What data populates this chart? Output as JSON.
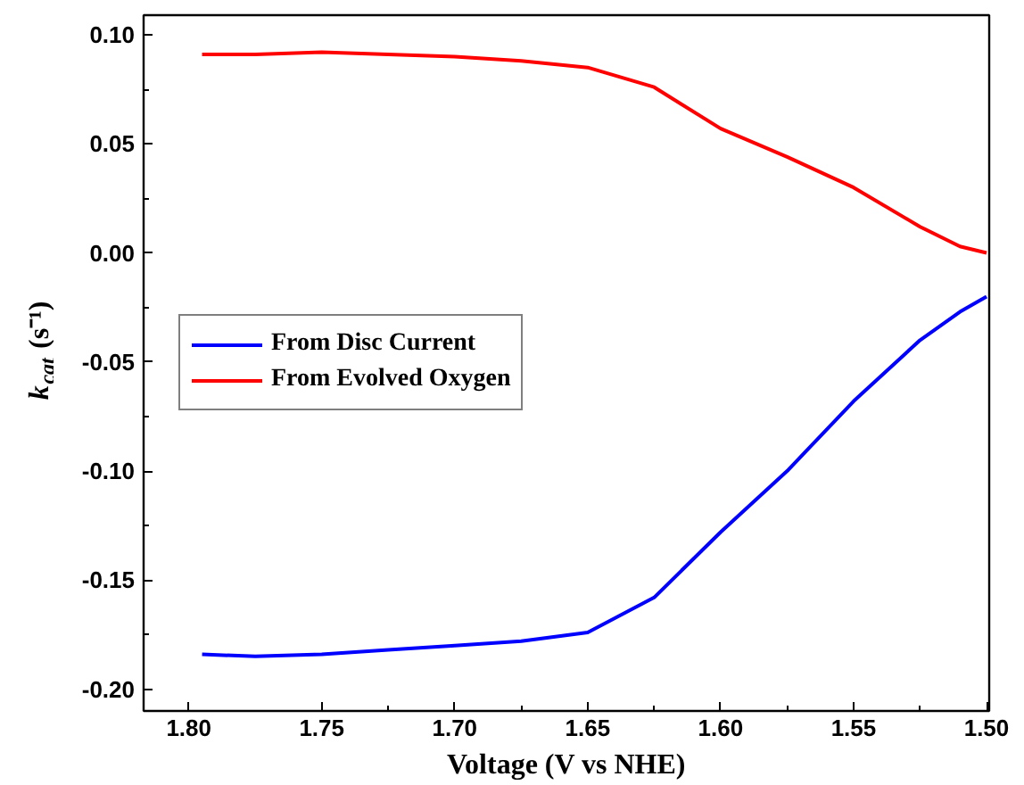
{
  "chart_data": {
    "type": "line",
    "xlabel": "Voltage (V vs NHE)",
    "ylabel": "k$_{cat}$ (s⁻¹)",
    "xlim": [
      1.817,
      1.499
    ],
    "ylim": [
      -0.21,
      0.109
    ],
    "xticks": [
      {
        "value": 1.8,
        "label": "1.80"
      },
      {
        "value": 1.75,
        "label": "1.75"
      },
      {
        "value": 1.7,
        "label": "1.70"
      },
      {
        "value": 1.65,
        "label": "1.65"
      },
      {
        "value": 1.6,
        "label": "1.60"
      },
      {
        "value": 1.55,
        "label": "1.55"
      },
      {
        "value": 1.5,
        "label": "1.50"
      }
    ],
    "yticks": [
      {
        "value": -0.2,
        "label": "-0.20"
      },
      {
        "value": -0.15,
        "label": "-0.15"
      },
      {
        "value": -0.1,
        "label": "-0.10"
      },
      {
        "value": -0.05,
        "label": "-0.05"
      },
      {
        "value": 0,
        "label": "0.00"
      },
      {
        "value": 0.05,
        "label": "0.05"
      },
      {
        "value": 0.1,
        "label": "0.10"
      }
    ],
    "x": [
      1.795,
      1.775,
      1.75,
      1.725,
      1.7,
      1.675,
      1.65,
      1.625,
      1.6,
      1.575,
      1.55,
      1.525,
      1.51,
      1.5
    ],
    "series": [
      {
        "name": "From Disc Current",
        "color": "#0000ff",
        "values": [
          -0.184,
          -0.185,
          -0.184,
          -0.182,
          -0.18,
          -0.178,
          -0.174,
          -0.158,
          -0.128,
          -0.1,
          -0.068,
          -0.04,
          -0.027,
          -0.02
        ]
      },
      {
        "name": "From Evolved Oxygen",
        "color": "#ff0000",
        "values": [
          0.091,
          0.091,
          0.092,
          0.091,
          0.09,
          0.088,
          0.085,
          0.076,
          0.057,
          0.044,
          0.03,
          0.012,
          0.003,
          0.0
        ]
      }
    ],
    "legend": "left",
    "grid": false,
    "line_style": "solid",
    "marker": "none"
  }
}
